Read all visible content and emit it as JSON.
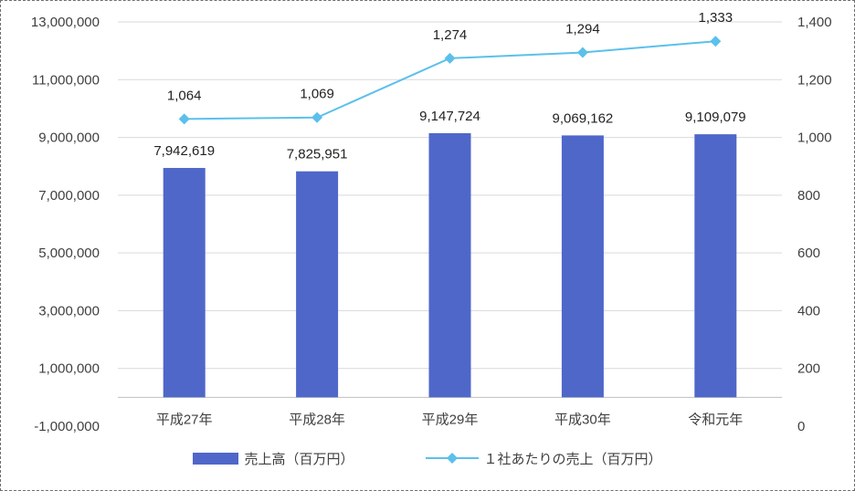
{
  "chart_data": {
    "type": "bar",
    "categories": [
      "平成27年",
      "平成28年",
      "平成29年",
      "平成30年",
      "令和元年"
    ],
    "series": [
      {
        "name": "売上高（百万円）",
        "type": "bar",
        "axis": "left",
        "color": "#4f67c9",
        "values": [
          7942619,
          7825951,
          9147724,
          9069162,
          9109079
        ],
        "labels": [
          "7,942,619",
          "7,825,951",
          "9,147,724",
          "9,069,162",
          "9,109,079"
        ]
      },
      {
        "name": "１社あたりの売上（百万円）",
        "type": "line",
        "axis": "right",
        "color": "#5bc0eb",
        "marker": "diamond",
        "values": [
          1064,
          1069,
          1274,
          1294,
          1333
        ],
        "labels": [
          "1,064",
          "1,069",
          "1,274",
          "1,294",
          "1,333"
        ]
      }
    ],
    "y_left": {
      "ylim": [
        -1000000,
        13000000
      ],
      "ticks": [
        -1000000,
        1000000,
        3000000,
        5000000,
        7000000,
        9000000,
        11000000,
        13000000
      ],
      "tick_labels": [
        "-1,000,000",
        "1,000,000",
        "3,000,000",
        "5,000,000",
        "7,000,000",
        "9,000,000",
        "11,000,000",
        "13,000,000"
      ]
    },
    "y_right": {
      "ylim": [
        0,
        1400
      ],
      "ticks": [
        0,
        200,
        400,
        600,
        800,
        1000,
        1200,
        1400
      ],
      "tick_labels": [
        "0",
        "200",
        "400",
        "600",
        "800",
        "1,000",
        "1,200",
        "1,400"
      ]
    },
    "grid": true,
    "legend_position": "bottom",
    "title": "",
    "xlabel": "",
    "ylabel": ""
  }
}
